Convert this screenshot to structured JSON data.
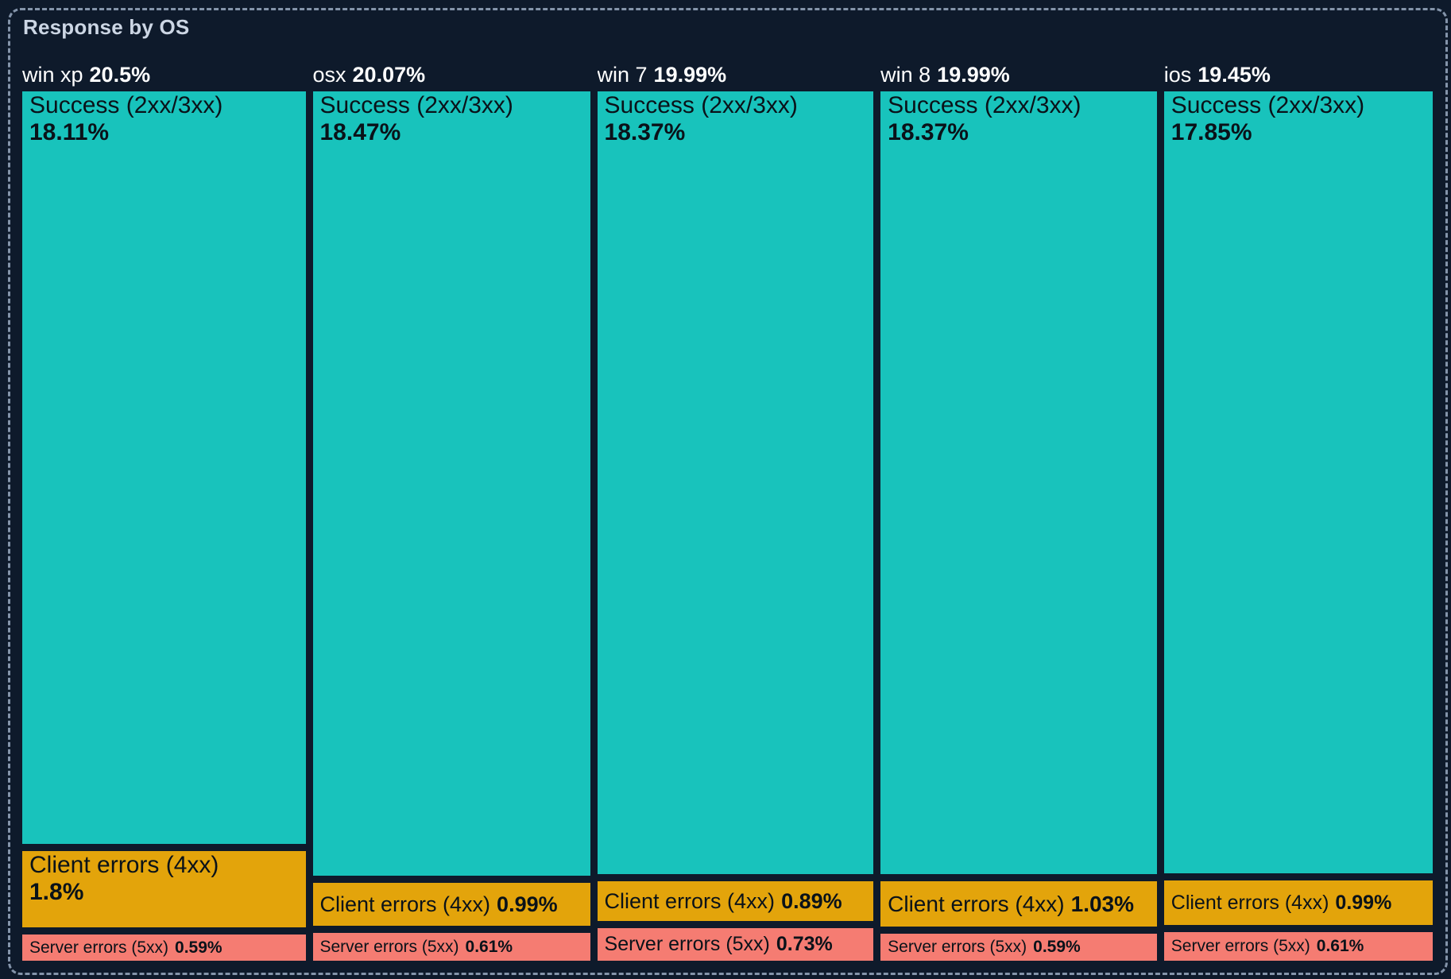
{
  "panel": {
    "title": "Response by OS"
  },
  "colors": {
    "background": "#0e1a2b",
    "panel_border": "#8494aa",
    "title_text": "#ccd6e4",
    "header_text": "#ffffff",
    "cell_text": "#0a1219",
    "success": "#18c3bc",
    "client": "#e3a40b",
    "server": "#f57c72"
  },
  "chart_data": {
    "type": "treemap",
    "title": "Response by OS",
    "layout_hint": "slice-dice mosaic: column width proportional to OS percent, segment height proportional to status percent, no legend, dark background",
    "groups": [
      {
        "name": "win xp",
        "pct_label": "20.5%",
        "value": 20.5,
        "segments": [
          {
            "kind": "success",
            "label": "Success (2xx/3xx)",
            "pct_label": "18.11%",
            "value": 18.11
          },
          {
            "kind": "client",
            "label": "Client errors (4xx)",
            "pct_label": "1.8%",
            "value": 1.8
          },
          {
            "kind": "server",
            "label": "Server errors (5xx)",
            "pct_label": "0.59%",
            "value": 0.59
          }
        ]
      },
      {
        "name": "osx",
        "pct_label": "20.07%",
        "value": 20.07,
        "segments": [
          {
            "kind": "success",
            "label": "Success (2xx/3xx)",
            "pct_label": "18.47%",
            "value": 18.47
          },
          {
            "kind": "client",
            "label": "Client errors (4xx)",
            "pct_label": "0.99%",
            "value": 0.99
          },
          {
            "kind": "server",
            "label": "Server errors (5xx)",
            "pct_label": "0.61%",
            "value": 0.61
          }
        ]
      },
      {
        "name": "win 7",
        "pct_label": "19.99%",
        "value": 19.99,
        "segments": [
          {
            "kind": "success",
            "label": "Success (2xx/3xx)",
            "pct_label": "18.37%",
            "value": 18.37
          },
          {
            "kind": "client",
            "label": "Client errors (4xx)",
            "pct_label": "0.89%",
            "value": 0.89
          },
          {
            "kind": "server",
            "label": "Server errors (5xx)",
            "pct_label": "0.73%",
            "value": 0.73
          }
        ]
      },
      {
        "name": "win 8",
        "pct_label": "19.99%",
        "value": 19.99,
        "segments": [
          {
            "kind": "success",
            "label": "Success (2xx/3xx)",
            "pct_label": "18.37%",
            "value": 18.37
          },
          {
            "kind": "client",
            "label": "Client errors (4xx)",
            "pct_label": "1.03%",
            "value": 1.03
          },
          {
            "kind": "server",
            "label": "Server errors (5xx)",
            "pct_label": "0.59%",
            "value": 0.59
          }
        ]
      },
      {
        "name": "ios",
        "pct_label": "19.45%",
        "value": 19.45,
        "segments": [
          {
            "kind": "success",
            "label": "Success (2xx/3xx)",
            "pct_label": "17.85%",
            "value": 17.85
          },
          {
            "kind": "client",
            "label": "Client errors (4xx)",
            "pct_label": "0.99%",
            "value": 0.99
          },
          {
            "kind": "server",
            "label": "Server errors (5xx)",
            "pct_label": "0.61%",
            "value": 0.61
          }
        ]
      }
    ]
  }
}
